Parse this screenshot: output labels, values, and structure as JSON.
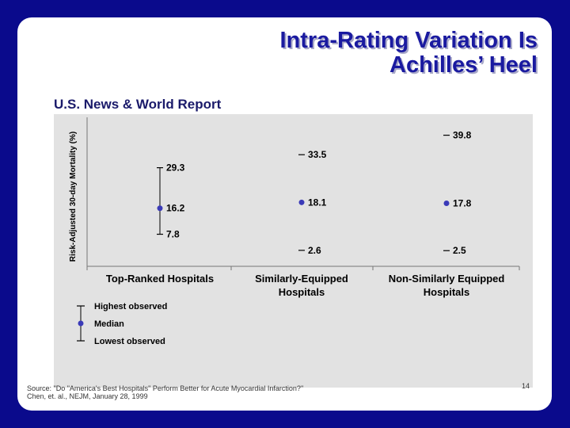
{
  "slide": {
    "title_line1": "Intra-Rating Variation Is",
    "title_line2": "Achilles’ Heel",
    "subtitle": "U.S. News & World Report",
    "source_line1": "Source:  \"Do \"America's Best Hospitals\" Perform Better for Acute Myocardial Infarction?\"",
    "source_line2": "Chen, et. al., NEJM, January 28, 1999",
    "page_number": "14"
  },
  "chart_data": {
    "type": "range",
    "ylabel": "Risk-Adjusted 30-day Mortality (%)",
    "ylim": [
      0,
      42
    ],
    "grid": false,
    "categories": [
      "Top-Ranked Hospitals",
      "Similarly-Equipped Hospitals",
      "Non-Similarly Equipped Hospitals"
    ],
    "category_lines": [
      [
        "Top-Ranked Hospitals"
      ],
      [
        "Similarly-Equipped",
        "Hospitals"
      ],
      [
        "Non-Similarly Equipped",
        "Hospitals"
      ]
    ],
    "series": [
      {
        "name": "Highest observed",
        "values": [
          29.3,
          33.5,
          39.8
        ]
      },
      {
        "name": "Median",
        "values": [
          16.2,
          18.1,
          17.8
        ]
      },
      {
        "name": "Lowest observed",
        "values": [
          7.8,
          2.6,
          2.5
        ]
      }
    ],
    "value_labels": {
      "high": [
        "29.3",
        "33.5",
        "39.8"
      ],
      "median": [
        "16.2",
        "18.1",
        "17.8"
      ],
      "low": [
        "7.8",
        "2.6",
        "2.5"
      ]
    },
    "legend": {
      "placement": "bottom-left",
      "highest": "Highest observed",
      "median": "Median",
      "lowest": "Lowest observed"
    },
    "colors": {
      "marker": "#3a3ab8",
      "line": "#000000",
      "text": "#000000"
    }
  }
}
